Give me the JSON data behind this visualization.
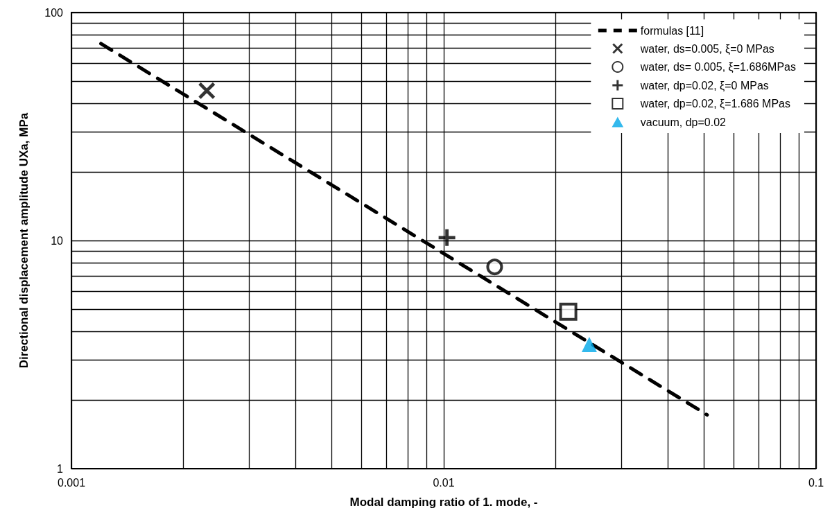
{
  "chart_data": {
    "type": "scatter",
    "xlabel": "Modal damping ratio of 1. mode, -",
    "ylabel": "Directional displacement amplitude UXa, MPa",
    "log": "xy",
    "xlim": [
      0.001,
      0.1
    ],
    "ylim": [
      1,
      100
    ],
    "xticks": [
      0.001,
      0.01,
      0.1
    ],
    "yticks": [
      1,
      10,
      100
    ],
    "grid": true,
    "legend": "top right",
    "series": [
      {
        "name": "formulas [11]",
        "type": "line",
        "line_style": "dashed",
        "marker": "none",
        "color": "#000000",
        "x": [
          0.0012,
          0.051
        ],
        "values": [
          73,
          1.72
        ]
      },
      {
        "name": "water, ds=0.005, ξ=0 MPas",
        "marker": "x",
        "color": "#000000",
        "x": [
          0.00231
        ],
        "values": [
          45.4
        ]
      },
      {
        "name": "water, ds= 0.005, ξ=1.686MPas",
        "marker": "circle",
        "color": "#000000",
        "x": [
          0.0137
        ],
        "values": [
          7.66
        ]
      },
      {
        "name": "water, dp=0.02, ξ=0 MPas",
        "marker": "cross",
        "color": "#000000",
        "x": [
          0.0102
        ],
        "values": [
          10.3
        ]
      },
      {
        "name": "water, dp=0.02, ξ=1.686 MPas",
        "marker": "square",
        "color": "#000000",
        "x": [
          0.0216
        ],
        "values": [
          4.87
        ]
      },
      {
        "name": "vacuum, dp=0.02",
        "marker": "triangle",
        "color": "#00a8e8",
        "x": [
          0.0246
        ],
        "values": [
          3.5
        ]
      }
    ]
  }
}
